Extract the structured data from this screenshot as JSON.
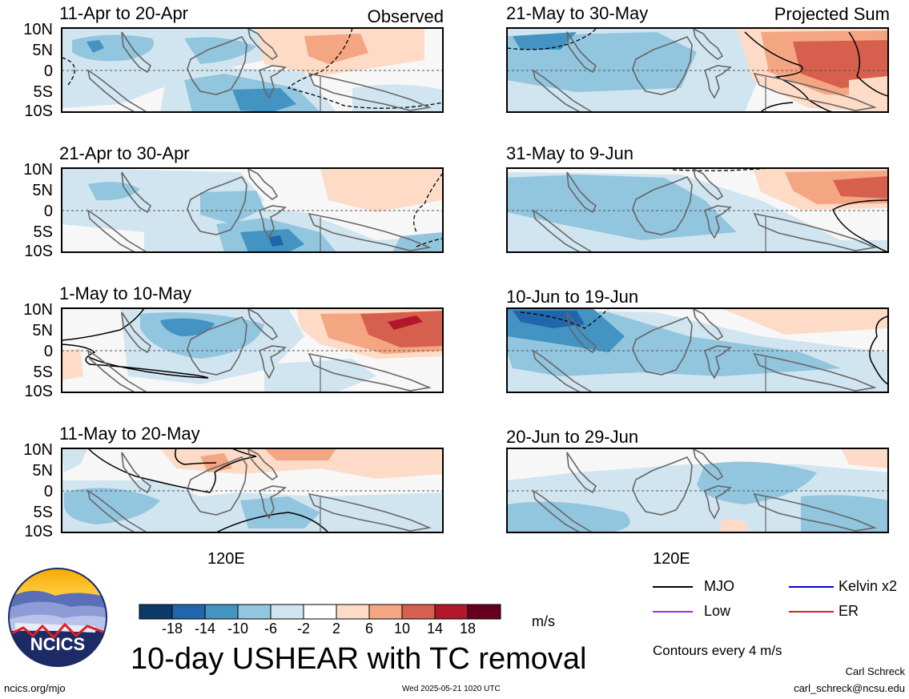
{
  "corner_labels": {
    "left": "Observed",
    "right": "Projected Sum"
  },
  "y_tick_labels": [
    "10N",
    "5N",
    "0",
    "5S",
    "10S"
  ],
  "x_tick_label": "120E",
  "panels_left": [
    {
      "title": "11-Apr to 20-Apr"
    },
    {
      "title": "21-Apr to 30-Apr"
    },
    {
      "title": "1-May to 10-May"
    },
    {
      "title": "11-May to 20-May"
    }
  ],
  "panels_right": [
    {
      "title": "21-May to 30-May"
    },
    {
      "title": "31-May to 9-Jun"
    },
    {
      "title": "10-Jun to 19-Jun"
    },
    {
      "title": "20-Jun to 29-Jun"
    }
  ],
  "colorbar": {
    "ticks": [
      "-18",
      "-14",
      "-10",
      "-6",
      "-2",
      "2",
      "6",
      "10",
      "14",
      "18"
    ],
    "colors": [
      "#0b3a66",
      "#2166ac",
      "#4393c3",
      "#92c5de",
      "#d1e5f0",
      "#ffffff",
      "#fddbc7",
      "#f4a582",
      "#d6604d",
      "#b2182b",
      "#67001f"
    ],
    "units": "m/s"
  },
  "legend": {
    "items": [
      {
        "label": "MJO",
        "color": "#000000"
      },
      {
        "label": "Kelvin x2",
        "color": "#0000cc"
      },
      {
        "label": "Low",
        "color": "#9b30d9"
      },
      {
        "label": "ER",
        "color": "#d62020"
      }
    ],
    "contour_note": "Contours every 4 m/s"
  },
  "logo": {
    "text": "NCICS"
  },
  "main_title": "10-day USHEAR with TC removal",
  "footer": {
    "url": "ncics.org/mjo",
    "timestamp": "Wed 2025-05-21 1020 UTC",
    "author": "Carl Schreck",
    "email": "carl_schreck@ncsu.edu"
  },
  "chart_data": {
    "type": "heatmap",
    "variable": "10-day USHEAR with TC removal",
    "units": "m/s",
    "ylim": [
      "10S",
      "10N"
    ],
    "color_levels": [
      -18,
      -14,
      -10,
      -6,
      -2,
      2,
      6,
      10,
      14,
      18
    ],
    "contour_interval": 4,
    "panels": [
      {
        "period": "11-Apr to 20-Apr",
        "type": "Observed"
      },
      {
        "period": "21-Apr to 30-Apr",
        "type": "Observed"
      },
      {
        "period": "1-May to 10-May",
        "type": "Observed"
      },
      {
        "period": "11-May to 20-May",
        "type": "Observed"
      },
      {
        "period": "21-May to 30-May",
        "type": "Projected Sum"
      },
      {
        "period": "31-May to 9-Jun",
        "type": "Projected Sum"
      },
      {
        "period": "10-Jun to 19-Jun",
        "type": "Projected Sum"
      },
      {
        "period": "20-Jun to 29-Jun",
        "type": "Projected Sum"
      }
    ]
  }
}
